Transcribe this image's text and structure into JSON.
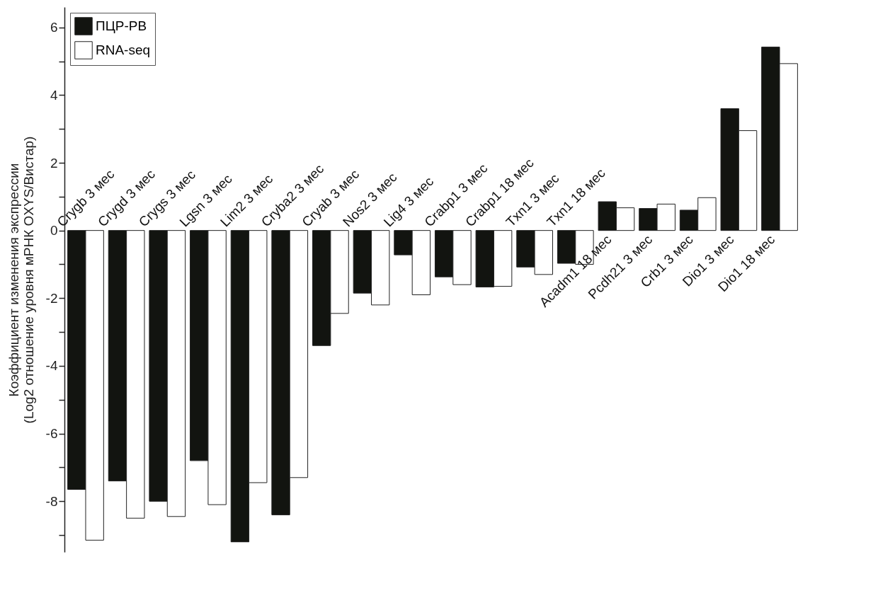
{
  "chart_data": {
    "type": "bar",
    "ylabel": "Коэффициент изменения экспрессии\n(Log2 отношение уровня мРНК OXYS/Вистар)",
    "categories": [
      "Crygb 3 мес",
      "Crygd 3 мес",
      "Crygs 3 мес",
      "Lgsn 3 мес",
      "Lim2 3 мес",
      "Cryba2 3 мес",
      "Cryab 3 мес",
      "Nos2 3 мес",
      "Lig4 3 мес",
      "Crabp1 3 мес",
      "Crabp1 18 мес",
      "Txn1 3 мес",
      "Txn1 18 мес",
      "Acadm1 18 мес",
      "Pcdh21 3 мес",
      "Crb1 3 мес",
      "Dio1 3 мес",
      "Dio1 18 мес"
    ],
    "series": [
      {
        "name": "ПЦР-РВ",
        "color": "#121410",
        "values": [
          -7.65,
          -7.4,
          -8.0,
          -6.8,
          -9.2,
          -8.4,
          -3.4,
          -1.85,
          -0.72,
          -1.37,
          -1.67,
          -1.08,
          -0.97,
          0.85,
          0.65,
          0.6,
          3.6,
          5.42
        ]
      },
      {
        "name": "RNA-seq",
        "color": "#ffffff",
        "values": [
          -9.15,
          -8.5,
          -8.45,
          -8.1,
          -7.45,
          -7.3,
          -2.45,
          -2.2,
          -1.9,
          -1.6,
          -1.65,
          -1.3,
          -1.0,
          0.67,
          0.78,
          0.97,
          2.95,
          4.93
        ]
      }
    ],
    "ylim": [
      -9.5,
      6.6
    ],
    "yticks": [
      {
        "value": -9,
        "label": null
      },
      -8,
      {
        "value": -7,
        "label": null
      },
      -6,
      {
        "value": -5,
        "label": null
      },
      -4,
      {
        "value": -3,
        "label": null
      },
      -2,
      {
        "value": -1,
        "label": null
      },
      0,
      {
        "value": 1,
        "label": null
      },
      2,
      {
        "value": 3,
        "label": null
      },
      4,
      {
        "value": 5,
        "label": null
      },
      6
    ],
    "legend": "top left",
    "grid": false
  }
}
